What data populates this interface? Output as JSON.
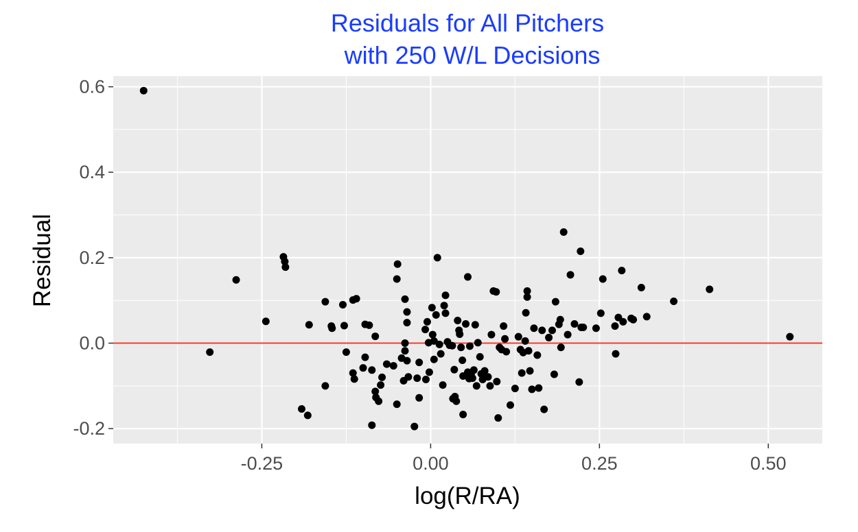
{
  "chart_data": {
    "type": "scatter",
    "title": [
      "Residuals for All Pitchers",
      "with 250 W/L Decisions"
    ],
    "xlabel": "log(R/RA)",
    "ylabel": "Residual",
    "xlim": [
      -0.47,
      0.58
    ],
    "ylim": [
      -0.235,
      0.625
    ],
    "x_ticks": [
      -0.25,
      0.0,
      0.25,
      0.5
    ],
    "x_tick_labels": [
      "-0.25",
      "0.00",
      "0.25",
      "0.50"
    ],
    "y_ticks": [
      -0.2,
      0.0,
      0.2,
      0.4,
      0.6
    ],
    "y_tick_labels": [
      "-0.2",
      "0.0",
      "0.2",
      "0.4",
      "0.6"
    ],
    "grid": true,
    "reference_line": {
      "y": 0.0,
      "color": "#f8382a"
    },
    "panel_color": "#ebebeb",
    "point_color": "#000000",
    "points": [
      [
        -0.425,
        0.591
      ],
      [
        -0.327,
        -0.021
      ],
      [
        -0.288,
        0.148
      ],
      [
        -0.244,
        0.051
      ],
      [
        -0.218,
        0.202
      ],
      [
        -0.216,
        0.191
      ],
      [
        -0.215,
        0.178
      ],
      [
        -0.191,
        -0.154
      ],
      [
        -0.182,
        -0.169
      ],
      [
        -0.18,
        0.043
      ],
      [
        -0.156,
        0.097
      ],
      [
        -0.156,
        -0.1
      ],
      [
        -0.147,
        0.04
      ],
      [
        -0.146,
        0.035
      ],
      [
        -0.13,
        0.09
      ],
      [
        -0.128,
        0.041
      ],
      [
        -0.125,
        -0.021
      ],
      [
        -0.115,
        0.101
      ],
      [
        -0.11,
        0.104
      ],
      [
        -0.115,
        -0.07
      ],
      [
        -0.113,
        -0.084
      ],
      [
        -0.1,
        -0.058
      ],
      [
        -0.097,
        -0.033
      ],
      [
        -0.097,
        0.044
      ],
      [
        -0.091,
        0.042
      ],
      [
        -0.087,
        -0.063
      ],
      [
        -0.087,
        -0.192
      ],
      [
        -0.082,
        0.016
      ],
      [
        -0.082,
        -0.113
      ],
      [
        -0.081,
        -0.127
      ],
      [
        -0.077,
        -0.136
      ],
      [
        -0.074,
        -0.098
      ],
      [
        -0.072,
        -0.08
      ],
      [
        -0.065,
        -0.049
      ],
      [
        -0.055,
        -0.053
      ],
      [
        -0.05,
        0.15
      ],
      [
        -0.049,
        0.185
      ],
      [
        -0.05,
        -0.143
      ],
      [
        -0.043,
        -0.035
      ],
      [
        -0.038,
        0.103
      ],
      [
        -0.035,
        0.073
      ],
      [
        -0.035,
        0.048
      ],
      [
        -0.038,
        0.0
      ],
      [
        -0.038,
        -0.018
      ],
      [
        -0.035,
        -0.041
      ],
      [
        -0.04,
        -0.088
      ],
      [
        -0.033,
        -0.079
      ],
      [
        -0.024,
        -0.195
      ],
      [
        -0.02,
        -0.082
      ],
      [
        -0.017,
        -0.128
      ],
      [
        -0.017,
        -0.045
      ],
      [
        -0.008,
        0.032
      ],
      [
        -0.005,
        0.05
      ],
      [
        -0.003,
        0.001
      ],
      [
        -0.002,
        -0.068
      ],
      [
        -0.007,
        -0.085
      ],
      [
        0.002,
        0.083
      ],
      [
        0.003,
        0.02
      ],
      [
        0.005,
        -0.038
      ],
      [
        0.005,
        0.005
      ],
      [
        0.008,
        0.066
      ],
      [
        0.01,
        0.2
      ],
      [
        0.013,
        -0.003
      ],
      [
        0.015,
        -0.025
      ],
      [
        0.018,
        -0.098
      ],
      [
        0.02,
        0.088
      ],
      [
        0.022,
        0.112
      ],
      [
        0.022,
        0.07
      ],
      [
        0.025,
        0.003
      ],
      [
        0.028,
        -0.005
      ],
      [
        0.032,
        -0.006
      ],
      [
        0.035,
        -0.062
      ],
      [
        0.033,
        -0.13
      ],
      [
        0.036,
        -0.125
      ],
      [
        0.038,
        -0.136
      ],
      [
        0.04,
        0.053
      ],
      [
        0.042,
        0.03
      ],
      [
        0.043,
        0.021
      ],
      [
        0.045,
        -0.01
      ],
      [
        0.047,
        -0.04
      ],
      [
        0.048,
        -0.077
      ],
      [
        0.048,
        -0.167
      ],
      [
        0.052,
        0.045
      ],
      [
        0.055,
        0.155
      ],
      [
        0.055,
        -0.068
      ],
      [
        0.057,
        -0.083
      ],
      [
        0.058,
        -0.007
      ],
      [
        0.06,
        -0.075
      ],
      [
        0.062,
        -0.082
      ],
      [
        0.064,
        -0.063
      ],
      [
        0.066,
        0.043
      ],
      [
        0.068,
        -0.1
      ],
      [
        0.07,
        0.001
      ],
      [
        0.073,
        -0.032
      ],
      [
        0.075,
        -0.072
      ],
      [
        0.077,
        -0.085
      ],
      [
        0.08,
        -0.065
      ],
      [
        0.085,
        -0.079
      ],
      [
        0.088,
        -0.1
      ],
      [
        0.09,
        0.02
      ],
      [
        0.093,
        0.122
      ],
      [
        0.097,
        0.12
      ],
      [
        0.098,
        -0.09
      ],
      [
        0.1,
        -0.175
      ],
      [
        0.102,
        -0.01
      ],
      [
        0.105,
        -0.015
      ],
      [
        0.108,
        0.04
      ],
      [
        0.11,
        0.01
      ],
      [
        0.112,
        -0.02
      ],
      [
        0.118,
        -0.145
      ],
      [
        0.125,
        -0.106
      ],
      [
        0.13,
        0.015
      ],
      [
        0.133,
        -0.015
      ],
      [
        0.135,
        -0.07
      ],
      [
        0.137,
        -0.022
      ],
      [
        0.14,
        0.005
      ],
      [
        0.141,
        0.071
      ],
      [
        0.143,
        0.122
      ],
      [
        0.143,
        0.108
      ],
      [
        0.145,
        -0.018
      ],
      [
        0.147,
        -0.065
      ],
      [
        0.15,
        -0.108
      ],
      [
        0.153,
        0.035
      ],
      [
        0.158,
        -0.028
      ],
      [
        0.16,
        -0.105
      ],
      [
        0.165,
        0.03
      ],
      [
        0.168,
        -0.155
      ],
      [
        0.175,
        0.013
      ],
      [
        0.18,
        0.03
      ],
      [
        0.183,
        -0.073
      ],
      [
        0.185,
        0.097
      ],
      [
        0.19,
        0.044
      ],
      [
        0.192,
        0.055
      ],
      [
        0.193,
        -0.01
      ],
      [
        0.197,
        0.26
      ],
      [
        0.203,
        0.02
      ],
      [
        0.207,
        0.16
      ],
      [
        0.213,
        0.045
      ],
      [
        0.22,
        -0.091
      ],
      [
        0.222,
        0.215
      ],
      [
        0.223,
        0.037
      ],
      [
        0.226,
        0.037
      ],
      [
        0.245,
        0.035
      ],
      [
        0.252,
        0.07
      ],
      [
        0.255,
        0.15
      ],
      [
        0.273,
        0.04
      ],
      [
        0.274,
        -0.025
      ],
      [
        0.278,
        0.06
      ],
      [
        0.283,
        0.17
      ],
      [
        0.285,
        0.05
      ],
      [
        0.297,
        0.058
      ],
      [
        0.3,
        0.055
      ],
      [
        0.312,
        0.13
      ],
      [
        0.32,
        0.062
      ],
      [
        0.36,
        0.098
      ],
      [
        0.413,
        0.126
      ],
      [
        0.532,
        0.015
      ]
    ]
  }
}
